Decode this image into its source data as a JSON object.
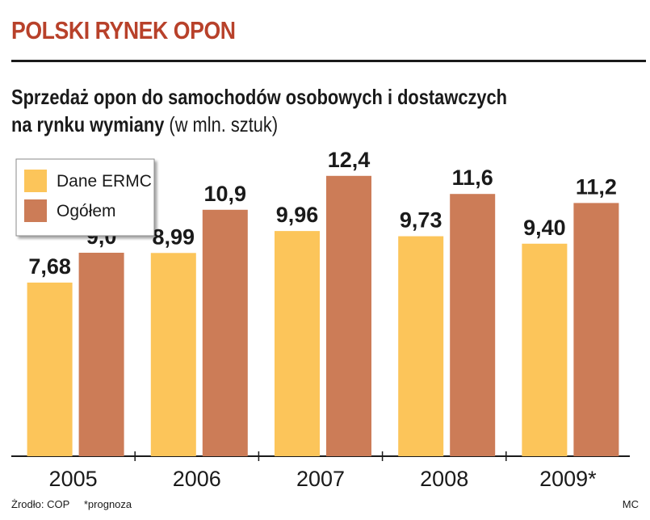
{
  "headline": "POLSKI RYNEK OPON",
  "subtitle": {
    "bold_part1": "Sprzedaż opon do samochodów osobowych i dostawczych",
    "bold_part2": "na rynku wymiany",
    "normal_part": "(w mln. sztuk)"
  },
  "footer": {
    "source": "Żrodło: COP",
    "note": "*prognoza",
    "credit": "MC"
  },
  "colors": {
    "headline": "#b8412a",
    "series_1": "#fcc55a",
    "series_2": "#cc7c57"
  },
  "chart_data": {
    "type": "bar",
    "categories": [
      "2005",
      "2006",
      "2007",
      "2008",
      "2009*"
    ],
    "series": [
      {
        "name": "Dane ERMC",
        "values": [
          7.68,
          8.99,
          9.96,
          9.73,
          9.4
        ],
        "labels": [
          "7,68",
          "8,99",
          "9,96",
          "9,73",
          "9,40"
        ],
        "color": "#fcc55a"
      },
      {
        "name": "Ogółem",
        "values": [
          9.0,
          10.9,
          12.4,
          11.6,
          11.2
        ],
        "labels": [
          "9,0",
          "10,9",
          "12,4",
          "11,6",
          "11,2"
        ],
        "color": "#cc7c57"
      }
    ],
    "ylim": [
      0,
      16
    ],
    "grid": false,
    "legend_position": "top-left"
  }
}
